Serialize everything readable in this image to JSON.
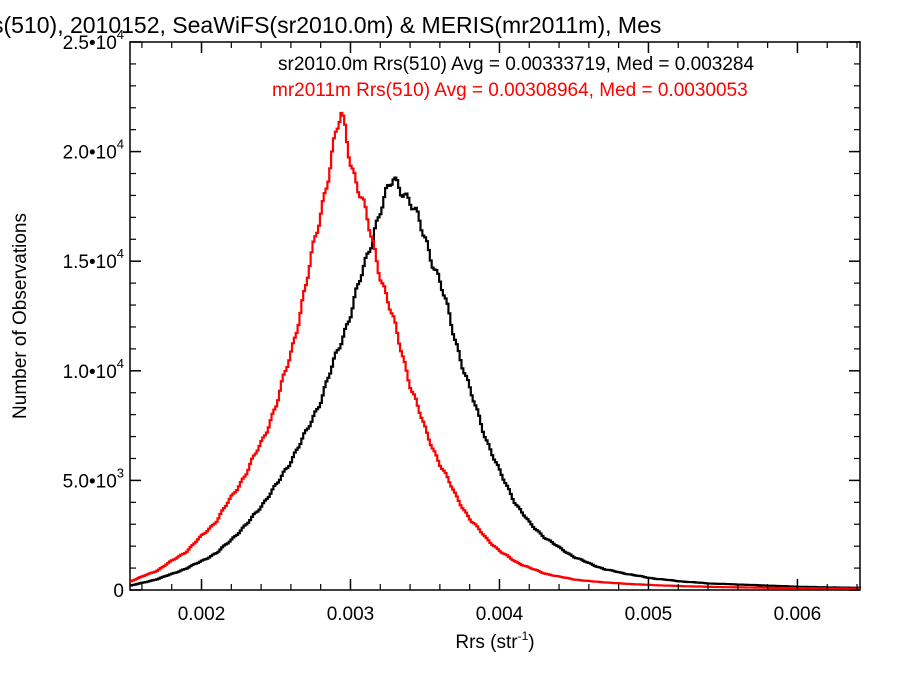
{
  "chart_data": {
    "type": "line",
    "title": "s(510), 2010152, SeaWiFS(sr2010.0m) & MERIS(mr2011m), Mes",
    "xlabel": {
      "base": "Rrs (str",
      "sup": "-1",
      "close": ")"
    },
    "ylabel": "Number of Observations",
    "xlim": [
      0.00152,
      0.00642
    ],
    "ylim": [
      0,
      25000
    ],
    "xticks": [
      {
        "value": 0.002,
        "label": "0.002"
      },
      {
        "value": 0.003,
        "label": "0.003"
      },
      {
        "value": 0.004,
        "label": "0.004"
      },
      {
        "value": 0.005,
        "label": "0.005"
      },
      {
        "value": 0.006,
        "label": "0.006"
      }
    ],
    "yticks": [
      {
        "value": 0,
        "mant": "0",
        "exp": ""
      },
      {
        "value": 5000,
        "mant": "5.0•10",
        "exp": "3"
      },
      {
        "value": 10000,
        "mant": "1.0•10",
        "exp": "4"
      },
      {
        "value": 15000,
        "mant": "1.5•10",
        "exp": "4"
      },
      {
        "value": 20000,
        "mant": "2.0•10",
        "exp": "4"
      },
      {
        "value": 25000,
        "mant": "2.5•10",
        "exp": "4"
      }
    ],
    "grid": false,
    "stats": [
      {
        "text": "sr2010.0m Rrs(510) Avg = 0.00333719, Med = 0.003284",
        "color": "#000000"
      },
      {
        "text": "mr2011m Rrs(510) Avg = 0.00308964, Med = 0.0030053",
        "color": "#ff0000"
      }
    ],
    "series": [
      {
        "color": "#000000",
        "x": [
          0.00152,
          0.0017,
          0.0019,
          0.0021,
          0.0023,
          0.0025,
          0.0027,
          0.0028,
          0.0029,
          0.003,
          0.0031,
          0.00315,
          0.0032,
          0.00325,
          0.00328,
          0.0033,
          0.00335,
          0.0034,
          0.0035,
          0.0036,
          0.0037,
          0.0038,
          0.0039,
          0.004,
          0.0041,
          0.0042,
          0.0043,
          0.0044,
          0.0045,
          0.0046,
          0.0047,
          0.0048,
          0.005,
          0.0052,
          0.0054,
          0.0056,
          0.0058,
          0.006,
          0.0062,
          0.00642
        ],
        "y": [
          200,
          500,
          1000,
          1700,
          3000,
          4800,
          7200,
          8800,
          10700,
          12800,
          15000,
          16400,
          17500,
          18200,
          18700,
          18600,
          18300,
          17600,
          16000,
          13900,
          11400,
          9000,
          7000,
          5300,
          4000,
          3000,
          2400,
          1900,
          1500,
          1200,
          950,
          800,
          550,
          400,
          300,
          250,
          200,
          150,
          120,
          100
        ]
      },
      {
        "color": "#ff0000",
        "x": [
          0.00152,
          0.0017,
          0.0019,
          0.0021,
          0.0023,
          0.0024,
          0.0025,
          0.0026,
          0.0027,
          0.0028,
          0.0029,
          0.00293,
          0.00296,
          0.003,
          0.0031,
          0.0032,
          0.0033,
          0.0034,
          0.0035,
          0.0036,
          0.0037,
          0.0038,
          0.0039,
          0.004,
          0.0041,
          0.0042,
          0.0043,
          0.0044,
          0.0045,
          0.0046,
          0.0048,
          0.005,
          0.0052,
          0.0055,
          0.0058,
          0.0061,
          0.00642
        ],
        "y": [
          400,
          900,
          1800,
          3200,
          5400,
          6800,
          8500,
          11000,
          14000,
          17500,
          20800,
          21600,
          21000,
          19500,
          17000,
          14300,
          11800,
          9300,
          7200,
          5700,
          4300,
          3200,
          2400,
          1750,
          1300,
          1000,
          750,
          600,
          480,
          400,
          300,
          230,
          180,
          130,
          100,
          80,
          60
        ]
      }
    ]
  }
}
